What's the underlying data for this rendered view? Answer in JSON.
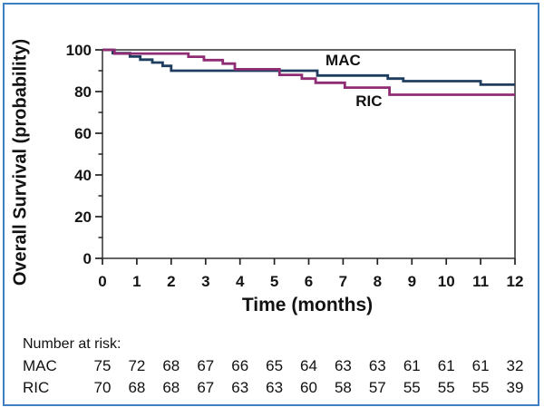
{
  "figure": {
    "border_color": "#3e80c2",
    "background": "#ffffff"
  },
  "chart_data": {
    "type": "line",
    "subtype": "kaplan-meier-step",
    "title": "",
    "xlabel": "Time (months)",
    "ylabel": "Overall Survival (probability)",
    "xlim": [
      0,
      12
    ],
    "ylim": [
      0,
      100
    ],
    "x_ticks": [
      0,
      1,
      2,
      3,
      4,
      5,
      6,
      7,
      8,
      9,
      10,
      11,
      12
    ],
    "y_ticks_major": [
      0,
      20,
      40,
      60,
      80,
      100
    ],
    "y_ticks_minor": [
      10,
      30,
      50,
      70,
      90
    ],
    "grid": false,
    "frame_color": "#3d3d3d",
    "tick_color": "#222222",
    "text_color": "#151515",
    "legend_position": "inline-labels",
    "series": [
      {
        "name": "MAC",
        "color": "#1e3d5f",
        "steps": [
          [
            0,
            100
          ],
          [
            0.3,
            98.4
          ],
          [
            0.8,
            96.8
          ],
          [
            1.1,
            95.3
          ],
          [
            1.45,
            93.9
          ],
          [
            1.75,
            92.3
          ],
          [
            2,
            90
          ],
          [
            6.25,
            87.7
          ],
          [
            8.3,
            86.2
          ],
          [
            8.75,
            85
          ],
          [
            11,
            83.3
          ],
          [
            12,
            83.3
          ]
        ]
      },
      {
        "name": "RIC",
        "color": "#8e2d74",
        "steps": [
          [
            0,
            100
          ],
          [
            0.35,
            98.2
          ],
          [
            2.5,
            96.7
          ],
          [
            2.95,
            95.1
          ],
          [
            3.5,
            93.4
          ],
          [
            3.85,
            90.7
          ],
          [
            5.15,
            88
          ],
          [
            5.8,
            86.2
          ],
          [
            6.2,
            84.2
          ],
          [
            7.05,
            81.9
          ],
          [
            8.35,
            78.5
          ],
          [
            12,
            78.5
          ]
        ]
      }
    ],
    "annotations": [
      {
        "text": "MAC",
        "x": 7.0,
        "y": 92.6
      },
      {
        "text": "RIC",
        "x": 7.75,
        "y": 73.0
      }
    ]
  },
  "risk_table": {
    "header": "Number at risk:",
    "time_points": [
      0,
      1,
      2,
      3,
      4,
      5,
      6,
      7,
      8,
      9,
      10,
      11,
      12
    ],
    "rows": [
      {
        "label": "MAC",
        "counts": [
          75,
          72,
          68,
          67,
          66,
          65,
          64,
          63,
          63,
          61,
          61,
          61,
          32
        ]
      },
      {
        "label": "RIC",
        "counts": [
          70,
          68,
          68,
          67,
          63,
          63,
          60,
          58,
          57,
          55,
          55,
          55,
          39
        ]
      }
    ]
  }
}
